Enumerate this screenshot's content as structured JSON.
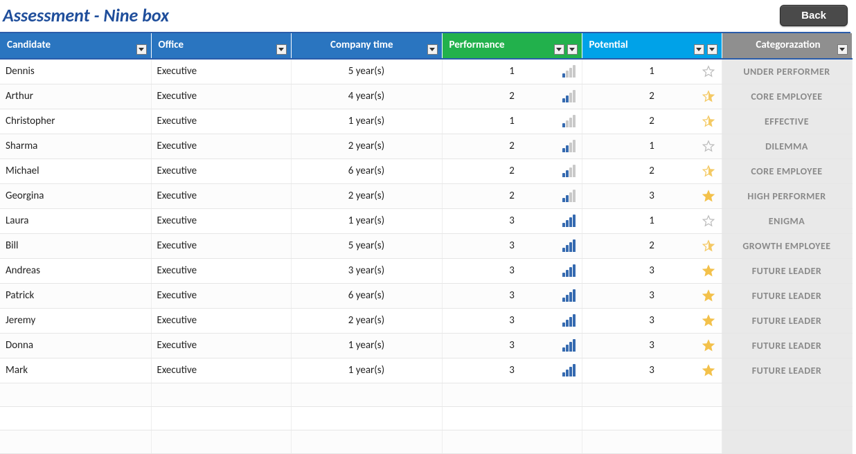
{
  "page": {
    "title": "Assessment - Nine box",
    "backLabel": "Back"
  },
  "colors": {
    "headerBlue": "#2a75c0",
    "headerGreen": "#22b14c",
    "headerCyan": "#00a2e8",
    "headerGray": "#8f8f8f",
    "barFilled": "#356ab0",
    "barEmpty": "#c9c9c9",
    "starFilled": "#f3c14b",
    "starEmpty": "#bdbdbd",
    "catText": "#8a8a8a",
    "titleColor": "#1f4e9b"
  },
  "columns": {
    "candidate": "Candidate",
    "office": "Office",
    "companyTime": "Company time",
    "performance": "Performance",
    "potential": "Potential",
    "category": "Categorazation"
  },
  "rows": [
    {
      "candidate": "Dennis",
      "office": "Executive",
      "company": "5 year(s)",
      "perf": 1,
      "pot": 1,
      "cat": "UNDER PERFORMER"
    },
    {
      "candidate": "Arthur",
      "office": "Executive",
      "company": "4 year(s)",
      "perf": 2,
      "pot": 2,
      "cat": "CORE EMPLOYEE"
    },
    {
      "candidate": "Christopher",
      "office": "Executive",
      "company": "1 year(s)",
      "perf": 1,
      "pot": 2,
      "cat": "EFFECTIVE"
    },
    {
      "candidate": "Sharma",
      "office": "Executive",
      "company": "2 year(s)",
      "perf": 2,
      "pot": 1,
      "cat": "DILEMMA"
    },
    {
      "candidate": "Michael",
      "office": "Executive",
      "company": "6 year(s)",
      "perf": 2,
      "pot": 2,
      "cat": "CORE EMPLOYEE"
    },
    {
      "candidate": "Georgina",
      "office": "Executive",
      "company": "2 year(s)",
      "perf": 2,
      "pot": 3,
      "cat": "HIGH PERFORMER"
    },
    {
      "candidate": "Laura",
      "office": "Executive",
      "company": "1 year(s)",
      "perf": 3,
      "pot": 1,
      "cat": "ENIGMA"
    },
    {
      "candidate": "Bill",
      "office": "Executive",
      "company": "5 year(s)",
      "perf": 3,
      "pot": 2,
      "cat": "GROWTH EMPLOYEE"
    },
    {
      "candidate": "Andreas",
      "office": "Executive",
      "company": "3 year(s)",
      "perf": 3,
      "pot": 3,
      "cat": "FUTURE LEADER"
    },
    {
      "candidate": "Patrick",
      "office": "Executive",
      "company": "6 year(s)",
      "perf": 3,
      "pot": 3,
      "cat": "FUTURE LEADER"
    },
    {
      "candidate": "Jeremy",
      "office": "Executive",
      "company": "2 year(s)",
      "perf": 3,
      "pot": 3,
      "cat": "FUTURE LEADER"
    },
    {
      "candidate": "Donna",
      "office": "Executive",
      "company": "1 year(s)",
      "perf": 3,
      "pot": 3,
      "cat": "FUTURE LEADER"
    },
    {
      "candidate": "Mark",
      "office": "Executive",
      "company": "1 year(s)",
      "perf": 3,
      "pot": 3,
      "cat": "FUTURE LEADER"
    }
  ],
  "emptyRows": 3,
  "barsCount": 4
}
